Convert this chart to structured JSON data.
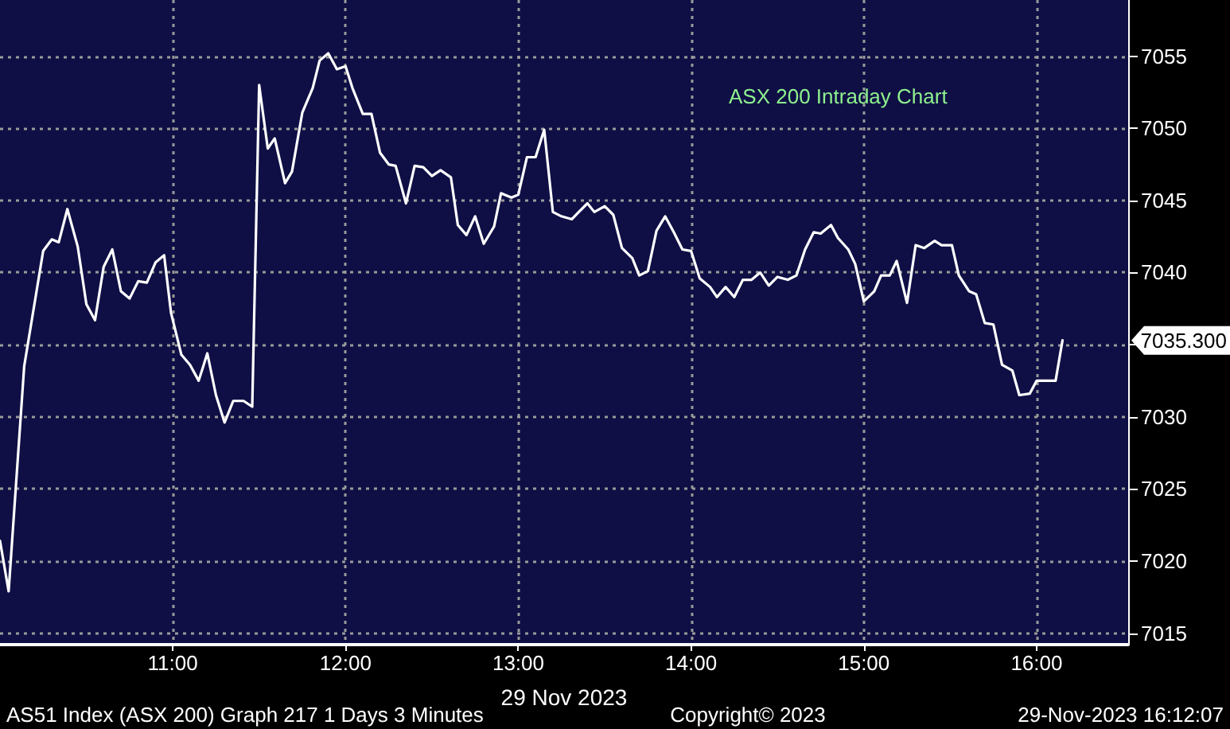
{
  "chart_data": {
    "type": "line",
    "title": "ASX 200 Intraday Chart",
    "xlabel": "29 Nov 2023",
    "x": [
      10.0,
      10.05,
      10.14,
      10.25,
      10.3,
      10.34,
      10.39,
      10.45,
      10.5,
      10.55,
      10.6,
      10.65,
      10.7,
      10.75,
      10.8,
      10.85,
      10.9,
      10.95,
      10.99,
      11.05,
      11.1,
      11.15,
      11.2,
      11.25,
      11.3,
      11.35,
      11.41,
      11.46,
      11.5,
      11.55,
      11.59,
      11.65,
      11.69,
      11.75,
      11.81,
      11.85,
      11.9,
      11.95,
      12.0,
      12.04,
      12.1,
      12.15,
      12.2,
      12.25,
      12.29,
      12.35,
      12.4,
      12.45,
      12.5,
      12.55,
      12.61,
      12.65,
      12.7,
      12.75,
      12.8,
      12.86,
      12.9,
      12.96,
      13.0,
      13.05,
      13.1,
      13.15,
      13.2,
      13.25,
      13.31,
      13.35,
      13.4,
      13.44,
      13.5,
      13.55,
      13.6,
      13.66,
      13.7,
      13.75,
      13.8,
      13.85,
      13.9,
      13.95,
      14.0,
      14.05,
      14.11,
      14.15,
      14.2,
      14.25,
      14.3,
      14.35,
      14.4,
      14.45,
      14.5,
      14.56,
      14.61,
      14.66,
      14.71,
      14.75,
      14.81,
      14.85,
      14.91,
      14.95,
      15.0,
      15.06,
      15.1,
      15.15,
      15.19,
      15.25,
      15.3,
      15.35,
      15.41,
      15.45,
      15.51,
      15.55,
      15.61,
      15.65,
      15.7,
      15.75,
      15.8,
      15.86,
      15.9,
      15.96,
      16.0,
      16.06,
      16.11,
      16.15
    ],
    "series": [
      {
        "color": "#ffffff",
        "values": [
          7021.4,
          7017.9,
          7033.5,
          7041.5,
          7042.3,
          7042.1,
          7044.4,
          7041.8,
          7037.8,
          7036.7,
          7040.4,
          7041.6,
          7038.7,
          7038.2,
          7039.4,
          7039.3,
          7040.7,
          7041.2,
          7037.2,
          7034.3,
          7033.6,
          7032.5,
          7034.4,
          7031.5,
          7029.6,
          7031.1,
          7031.1,
          7030.7,
          7053.0,
          7048.6,
          7049.3,
          7046.2,
          7047.0,
          7051.1,
          7052.8,
          7054.7,
          7055.2,
          7054.1,
          7054.3,
          7052.8,
          7051.0,
          7051.0,
          7048.3,
          7047.5,
          7047.4,
          7044.8,
          7047.4,
          7047.3,
          7046.7,
          7047.1,
          7046.6,
          7043.3,
          7042.6,
          7043.9,
          7042.0,
          7043.2,
          7045.5,
          7045.2,
          7045.4,
          7048.0,
          7048.0,
          7049.9,
          7044.2,
          7043.9,
          7043.7,
          7044.2,
          7044.8,
          7044.2,
          7044.6,
          7044.0,
          7041.7,
          7041.0,
          7039.8,
          7040.1,
          7042.9,
          7043.9,
          7042.8,
          7041.6,
          7041.5,
          7039.6,
          7039.0,
          7038.3,
          7039.0,
          7038.3,
          7039.5,
          7039.5,
          7040.0,
          7039.1,
          7039.7,
          7039.5,
          7039.8,
          7041.6,
          7042.8,
          7042.7,
          7043.3,
          7042.4,
          7041.6,
          7040.6,
          7038.0,
          7038.7,
          7039.8,
          7039.8,
          7040.8,
          7037.9,
          7041.9,
          7041.7,
          7042.2,
          7041.9,
          7041.9,
          7039.8,
          7038.7,
          7038.5,
          7036.5,
          7036.4,
          7033.6,
          7033.2,
          7031.5,
          7031.6,
          7032.5,
          7032.5,
          7032.5,
          7035.3
        ]
      }
    ],
    "xlim": [
      10.0,
      16.53
    ],
    "xticks": [
      {
        "value": 11,
        "label": "11:00"
      },
      {
        "value": 12,
        "label": "12:00"
      },
      {
        "value": 13,
        "label": "13:00"
      },
      {
        "value": 14,
        "label": "14:00"
      },
      {
        "value": 15,
        "label": "15:00"
      },
      {
        "value": 16,
        "label": "16:00"
      }
    ],
    "ylim": [
      7014.2,
      7058.9
    ],
    "yticks": [
      7015,
      7020,
      7025,
      7030,
      {
        "value": 7035,
        "label": null
      },
      7040,
      7045,
      7050,
      7055
    ],
    "grid": true,
    "marker": "none",
    "line_style": "solid",
    "annotations": [
      "AS51 Index (ASX 200) Graph 217 1 Days 3 Minutes",
      "Copyright© 2023",
      "29-Nov-2023 16:12:07",
      "7035.300"
    ]
  }
}
